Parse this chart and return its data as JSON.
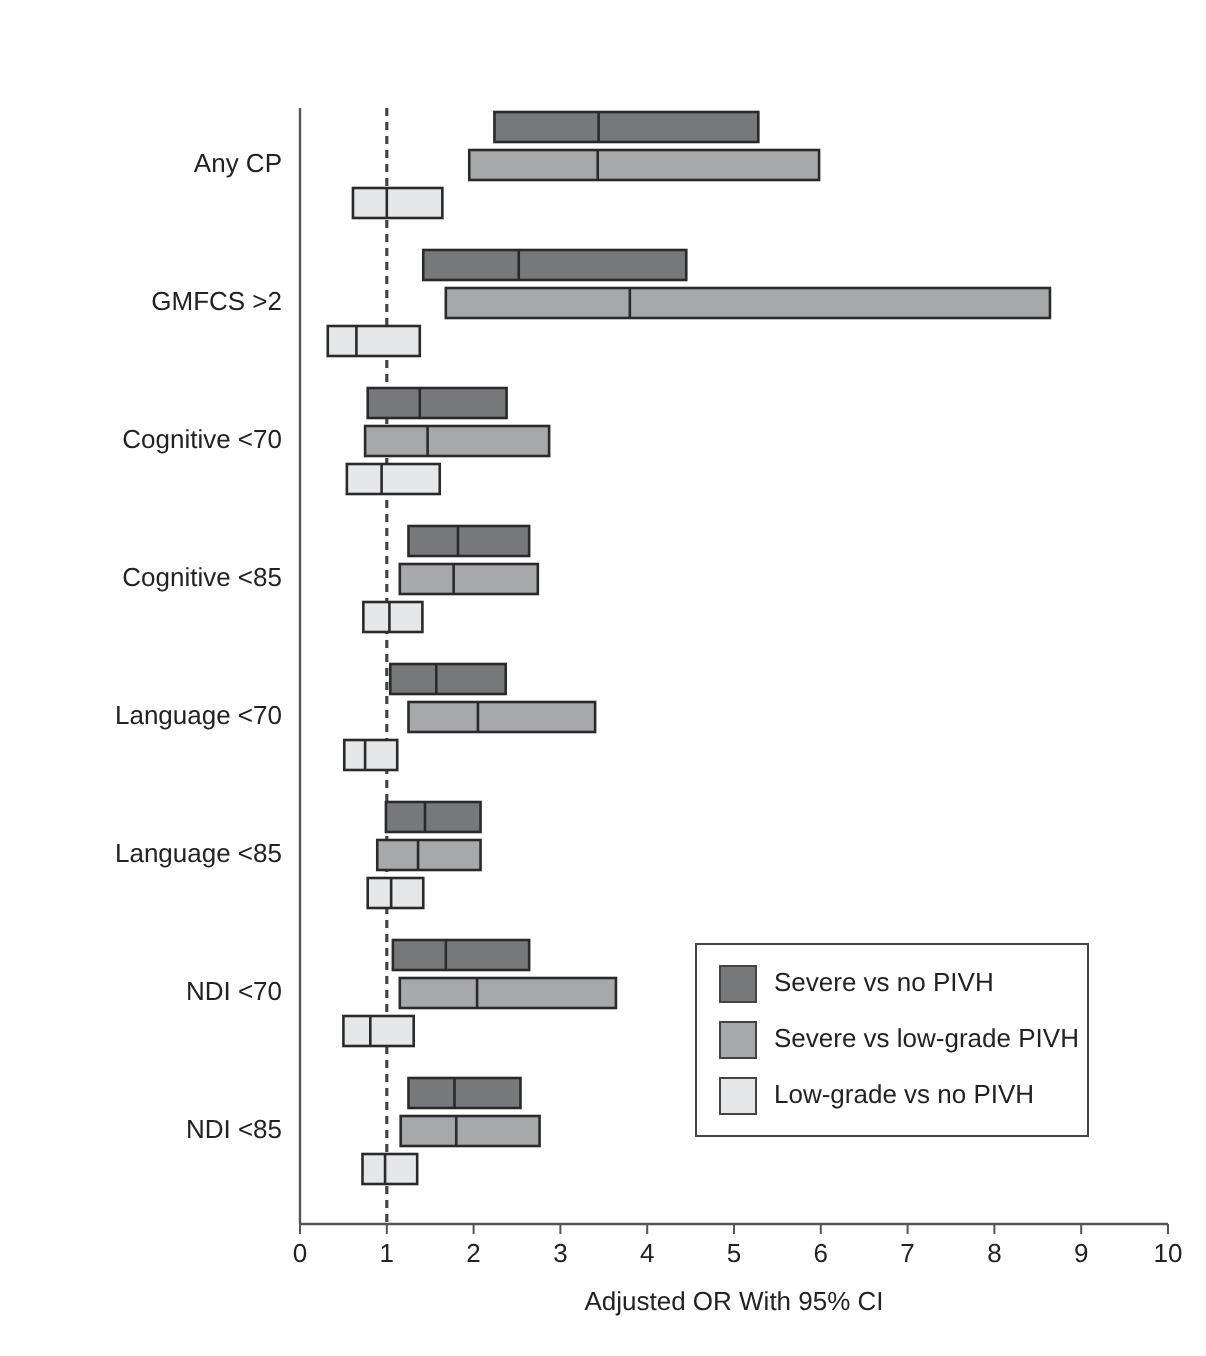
{
  "chart_data": {
    "type": "box",
    "orientation": "horizontal",
    "xlabel": "Adjusted OR With 95% CI",
    "categories": [
      "Any CP",
      "GMFCS >2",
      "Cognitive <70",
      "Cognitive <85",
      "Language <70",
      "Language <85",
      "NDI <70",
      "NDI <85"
    ],
    "xlim": [
      0,
      10
    ],
    "xticks": [
      0,
      1,
      2,
      3,
      4,
      5,
      6,
      7,
      8,
      9,
      10
    ],
    "grid": false,
    "legend": "bottom right",
    "ref_lines": [
      {
        "axis": "x",
        "value": 1,
        "line_style": "dashed",
        "color": "#444444"
      }
    ],
    "series": [
      {
        "name": "Severe vs no PIVH",
        "color": "#77787b",
        "boxes": [
          {
            "low": 2.24,
            "q1": 2.24,
            "median": 3.44,
            "q3": 5.28,
            "high": 5.28
          },
          {
            "low": 1.42,
            "q1": 1.42,
            "median": 2.52,
            "q3": 4.45,
            "high": 4.45
          },
          {
            "low": 0.78,
            "q1": 0.78,
            "median": 1.38,
            "q3": 2.38,
            "high": 2.38
          },
          {
            "low": 1.25,
            "q1": 1.25,
            "median": 1.82,
            "q3": 2.64,
            "high": 2.64
          },
          {
            "low": 1.04,
            "q1": 1.04,
            "median": 1.57,
            "q3": 2.37,
            "high": 2.37
          },
          {
            "low": 0.99,
            "q1": 0.99,
            "median": 1.44,
            "q3": 2.08,
            "high": 2.08
          },
          {
            "low": 1.07,
            "q1": 1.07,
            "median": 1.68,
            "q3": 2.64,
            "high": 2.64
          },
          {
            "low": 1.25,
            "q1": 1.25,
            "median": 1.78,
            "q3": 2.54,
            "high": 2.54
          }
        ]
      },
      {
        "name": "Severe vs low-grade PIVH",
        "color": "#a7a8ab",
        "boxes": [
          {
            "low": 1.95,
            "q1": 1.95,
            "median": 3.43,
            "q3": 5.98,
            "high": 5.98
          },
          {
            "low": 1.68,
            "q1": 1.68,
            "median": 3.8,
            "q3": 8.64,
            "high": 8.64
          },
          {
            "low": 0.75,
            "q1": 0.75,
            "median": 1.47,
            "q3": 2.87,
            "high": 2.87
          },
          {
            "low": 1.15,
            "q1": 1.15,
            "median": 1.77,
            "q3": 2.74,
            "high": 2.74
          },
          {
            "low": 1.25,
            "q1": 1.25,
            "median": 2.05,
            "q3": 3.4,
            "high": 3.4
          },
          {
            "low": 0.89,
            "q1": 0.89,
            "median": 1.36,
            "q3": 2.08,
            "high": 2.08
          },
          {
            "low": 1.15,
            "q1": 1.15,
            "median": 2.04,
            "q3": 3.64,
            "high": 3.64
          },
          {
            "low": 1.16,
            "q1": 1.16,
            "median": 1.8,
            "q3": 2.76,
            "high": 2.76
          }
        ]
      },
      {
        "name": "Low-grade vs no PIVH",
        "color": "#e6e7e8",
        "boxes": [
          {
            "low": 0.61,
            "q1": 0.61,
            "median": 1.0,
            "q3": 1.64,
            "high": 1.64
          },
          {
            "low": 0.32,
            "q1": 0.32,
            "median": 0.65,
            "q3": 1.38,
            "high": 1.38
          },
          {
            "low": 0.54,
            "q1": 0.54,
            "median": 0.94,
            "q3": 1.61,
            "high": 1.61
          },
          {
            "low": 0.73,
            "q1": 0.73,
            "median": 1.03,
            "q3": 1.41,
            "high": 1.41
          },
          {
            "low": 0.51,
            "q1": 0.51,
            "median": 0.75,
            "q3": 1.12,
            "high": 1.12
          },
          {
            "low": 0.78,
            "q1": 0.78,
            "median": 1.05,
            "q3": 1.42,
            "high": 1.42
          },
          {
            "low": 0.5,
            "q1": 0.5,
            "median": 0.81,
            "q3": 1.31,
            "high": 1.31
          },
          {
            "low": 0.72,
            "q1": 0.72,
            "median": 0.98,
            "q3": 1.35,
            "high": 1.35
          }
        ]
      }
    ]
  }
}
